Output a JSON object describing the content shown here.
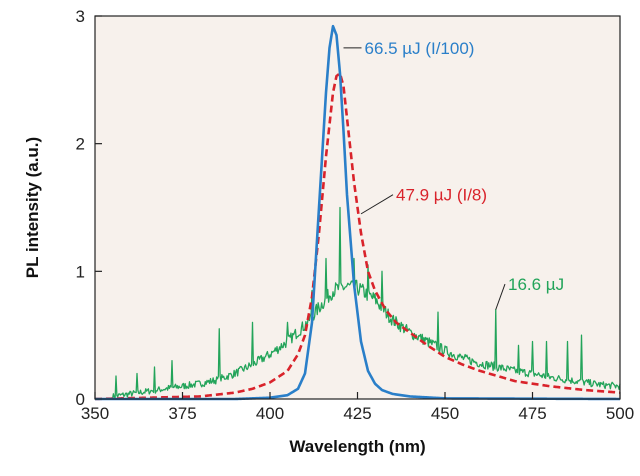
{
  "chart_data": {
    "type": "line",
    "title": "",
    "xlabel": "Wavelength (nm)",
    "ylabel": "PL intensity (a.u.)",
    "xlim": [
      350,
      500
    ],
    "ylim": [
      0,
      3
    ],
    "xticks": [
      350,
      375,
      400,
      425,
      450,
      475,
      500
    ],
    "yticks": [
      0,
      1,
      2,
      3
    ],
    "grid": false,
    "legend": "none",
    "plot_background": "#f7f1ec",
    "series": [
      {
        "name": "66.5 µJ (I/100)",
        "color": "#2a7fc9",
        "style": "solid",
        "x": [
          350,
          390,
          400,
          405,
          408,
          410,
          412,
          414,
          416,
          417,
          418,
          419,
          420,
          421,
          422,
          424,
          426,
          428,
          430,
          432,
          435,
          440,
          450,
          500
        ],
        "y": [
          0,
          0,
          0.01,
          0.03,
          0.08,
          0.2,
          0.6,
          1.5,
          2.4,
          2.75,
          2.92,
          2.85,
          2.55,
          2.1,
          1.6,
          0.9,
          0.45,
          0.22,
          0.12,
          0.07,
          0.04,
          0.02,
          0.005,
          0
        ]
      },
      {
        "name": "47.9 µJ (I/8)",
        "color": "#d9232b",
        "style": "dashed",
        "x": [
          350,
          380,
          390,
          395,
          400,
          405,
          408,
          410,
          412,
          414,
          416,
          418,
          419,
          420,
          421,
          422,
          424,
          426,
          428,
          430,
          433,
          436,
          440,
          445,
          450,
          455,
          460,
          465,
          470,
          480,
          490,
          500
        ],
        "y": [
          0,
          0.02,
          0.05,
          0.08,
          0.13,
          0.22,
          0.35,
          0.5,
          0.8,
          1.3,
          1.9,
          2.4,
          2.53,
          2.55,
          2.45,
          2.2,
          1.7,
          1.3,
          1.0,
          0.85,
          0.7,
          0.6,
          0.52,
          0.42,
          0.33,
          0.27,
          0.22,
          0.18,
          0.14,
          0.1,
          0.07,
          0.05
        ]
      },
      {
        "name": "16.6 µJ",
        "color": "#23a45a",
        "style": "solid",
        "x": [
          355,
          360,
          365,
          370,
          375,
          380,
          385,
          390,
          395,
          400,
          405,
          410,
          415,
          418,
          420,
          422,
          425,
          430,
          435,
          440,
          445,
          450,
          455,
          460,
          465,
          470,
          475,
          480,
          485,
          490,
          495,
          500
        ],
        "y": [
          0.02,
          0.04,
          0.06,
          0.08,
          0.1,
          0.12,
          0.15,
          0.2,
          0.27,
          0.35,
          0.45,
          0.58,
          0.75,
          0.85,
          0.87,
          0.88,
          0.87,
          0.78,
          0.62,
          0.52,
          0.45,
          0.38,
          0.32,
          0.28,
          0.25,
          0.22,
          0.2,
          0.17,
          0.15,
          0.13,
          0.11,
          0.1
        ],
        "spikes": [
          {
            "x": 356,
            "y": 0.18
          },
          {
            "x": 362,
            "y": 0.2
          },
          {
            "x": 367,
            "y": 0.25
          },
          {
            "x": 372,
            "y": 0.3
          },
          {
            "x": 385.5,
            "y": 0.55
          },
          {
            "x": 395,
            "y": 0.6
          },
          {
            "x": 405,
            "y": 0.6
          },
          {
            "x": 412,
            "y": 0.85
          },
          {
            "x": 416,
            "y": 1.1
          },
          {
            "x": 420,
            "y": 1.5
          },
          {
            "x": 424,
            "y": 1.1
          },
          {
            "x": 428,
            "y": 1.05
          },
          {
            "x": 432,
            "y": 1.0
          },
          {
            "x": 448,
            "y": 0.68
          },
          {
            "x": 464.5,
            "y": 0.7
          },
          {
            "x": 471,
            "y": 0.42
          },
          {
            "x": 475,
            "y": 0.45
          },
          {
            "x": 479,
            "y": 0.45
          },
          {
            "x": 485,
            "y": 0.45
          },
          {
            "x": 489,
            "y": 0.5
          }
        ]
      }
    ],
    "annotations": [
      {
        "text": "66.5 µJ (I/100)",
        "color": "#2a7fc9",
        "point": [
          421,
          2.75
        ],
        "label_at": [
          427,
          2.75
        ]
      },
      {
        "text": "47.9 µJ (I/8)",
        "color": "#d9232b",
        "point": [
          426,
          1.45
        ],
        "label_at": [
          436,
          1.6
        ]
      },
      {
        "text": "16.6 µJ",
        "color": "#23a45a",
        "point": [
          464.5,
          0.7
        ],
        "label_at": [
          468,
          0.9
        ]
      }
    ]
  }
}
